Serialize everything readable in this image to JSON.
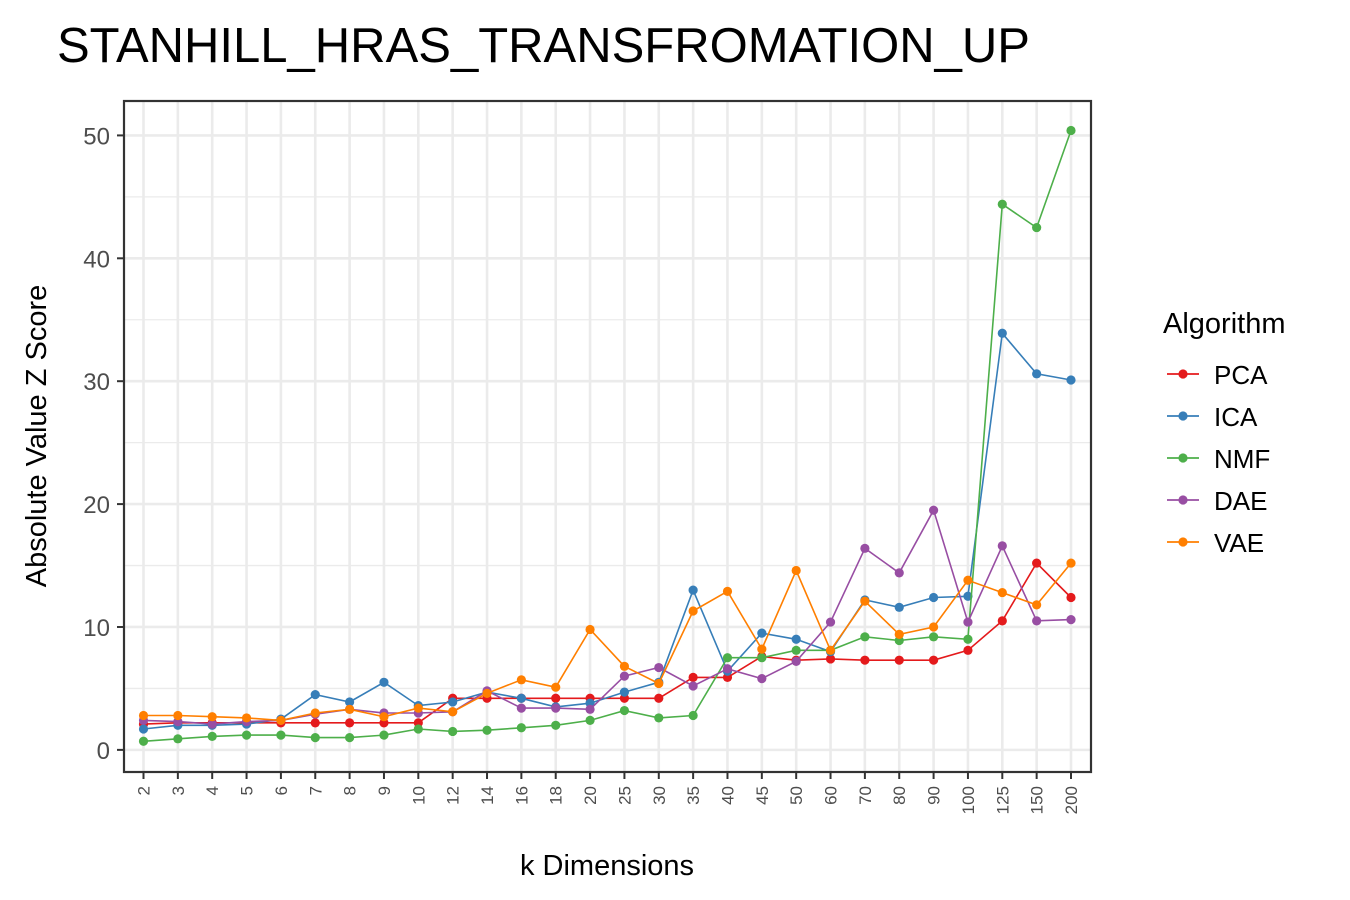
{
  "chart_data": {
    "type": "line",
    "title": "STANHILL_HRAS_TRANSFROMATION_UP",
    "xlabel": "k Dimensions",
    "ylabel": "Absolute Value Z Score",
    "categories": [
      "2",
      "3",
      "4",
      "5",
      "6",
      "7",
      "8",
      "9",
      "10",
      "12",
      "14",
      "16",
      "18",
      "20",
      "25",
      "30",
      "35",
      "40",
      "45",
      "50",
      "60",
      "70",
      "80",
      "90",
      "100",
      "125",
      "150",
      "200"
    ],
    "ylim": [
      -1.8,
      52.8
    ],
    "yticks": [
      0,
      10,
      20,
      30,
      40,
      50
    ],
    "grid": true,
    "legend": {
      "title": "Algorithm",
      "position": "right"
    },
    "series": [
      {
        "name": "PCA",
        "color": "#E41A1C",
        "values": [
          2.1,
          2.2,
          2.2,
          2.2,
          2.2,
          2.2,
          2.2,
          2.2,
          2.2,
          4.2,
          4.2,
          4.2,
          4.2,
          4.2,
          4.2,
          4.2,
          5.9,
          5.9,
          7.6,
          7.3,
          7.4,
          7.3,
          7.3,
          7.3,
          8.1,
          10.5,
          15.2,
          12.4
        ]
      },
      {
        "name": "ICA",
        "color": "#377EB8",
        "values": [
          1.7,
          2.0,
          2.0,
          2.1,
          2.5,
          4.5,
          3.9,
          5.5,
          3.6,
          3.9,
          4.7,
          4.2,
          3.5,
          3.8,
          4.7,
          5.5,
          13.0,
          6.4,
          9.5,
          9.0,
          8.0,
          12.2,
          11.6,
          12.4,
          12.5,
          33.9,
          30.6,
          30.1
        ]
      },
      {
        "name": "NMF",
        "color": "#4DAF4A",
        "values": [
          0.7,
          0.9,
          1.1,
          1.2,
          1.2,
          1.0,
          1.0,
          1.2,
          1.7,
          1.5,
          1.6,
          1.8,
          2.0,
          2.4,
          3.2,
          2.6,
          2.8,
          7.5,
          7.5,
          8.1,
          8.1,
          9.2,
          8.9,
          9.2,
          9.0,
          44.4,
          42.5,
          50.4
        ]
      },
      {
        "name": "DAE",
        "color": "#984EA3",
        "values": [
          2.4,
          2.3,
          2.1,
          2.3,
          2.4,
          2.9,
          3.3,
          3.0,
          3.0,
          3.1,
          4.8,
          3.4,
          3.4,
          3.3,
          6.0,
          6.7,
          5.2,
          6.6,
          5.8,
          7.2,
          10.4,
          16.4,
          14.4,
          19.5,
          10.4,
          16.6,
          10.5,
          10.6
        ]
      },
      {
        "name": "VAE",
        "color": "#FF7F00",
        "values": [
          2.8,
          2.8,
          2.7,
          2.6,
          2.4,
          3.0,
          3.3,
          2.7,
          3.4,
          3.1,
          4.6,
          5.7,
          5.1,
          9.8,
          6.8,
          5.4,
          11.3,
          12.9,
          8.2,
          14.6,
          8.1,
          12.1,
          9.4,
          10.0,
          13.8,
          12.8,
          11.8,
          15.2
        ]
      }
    ]
  }
}
